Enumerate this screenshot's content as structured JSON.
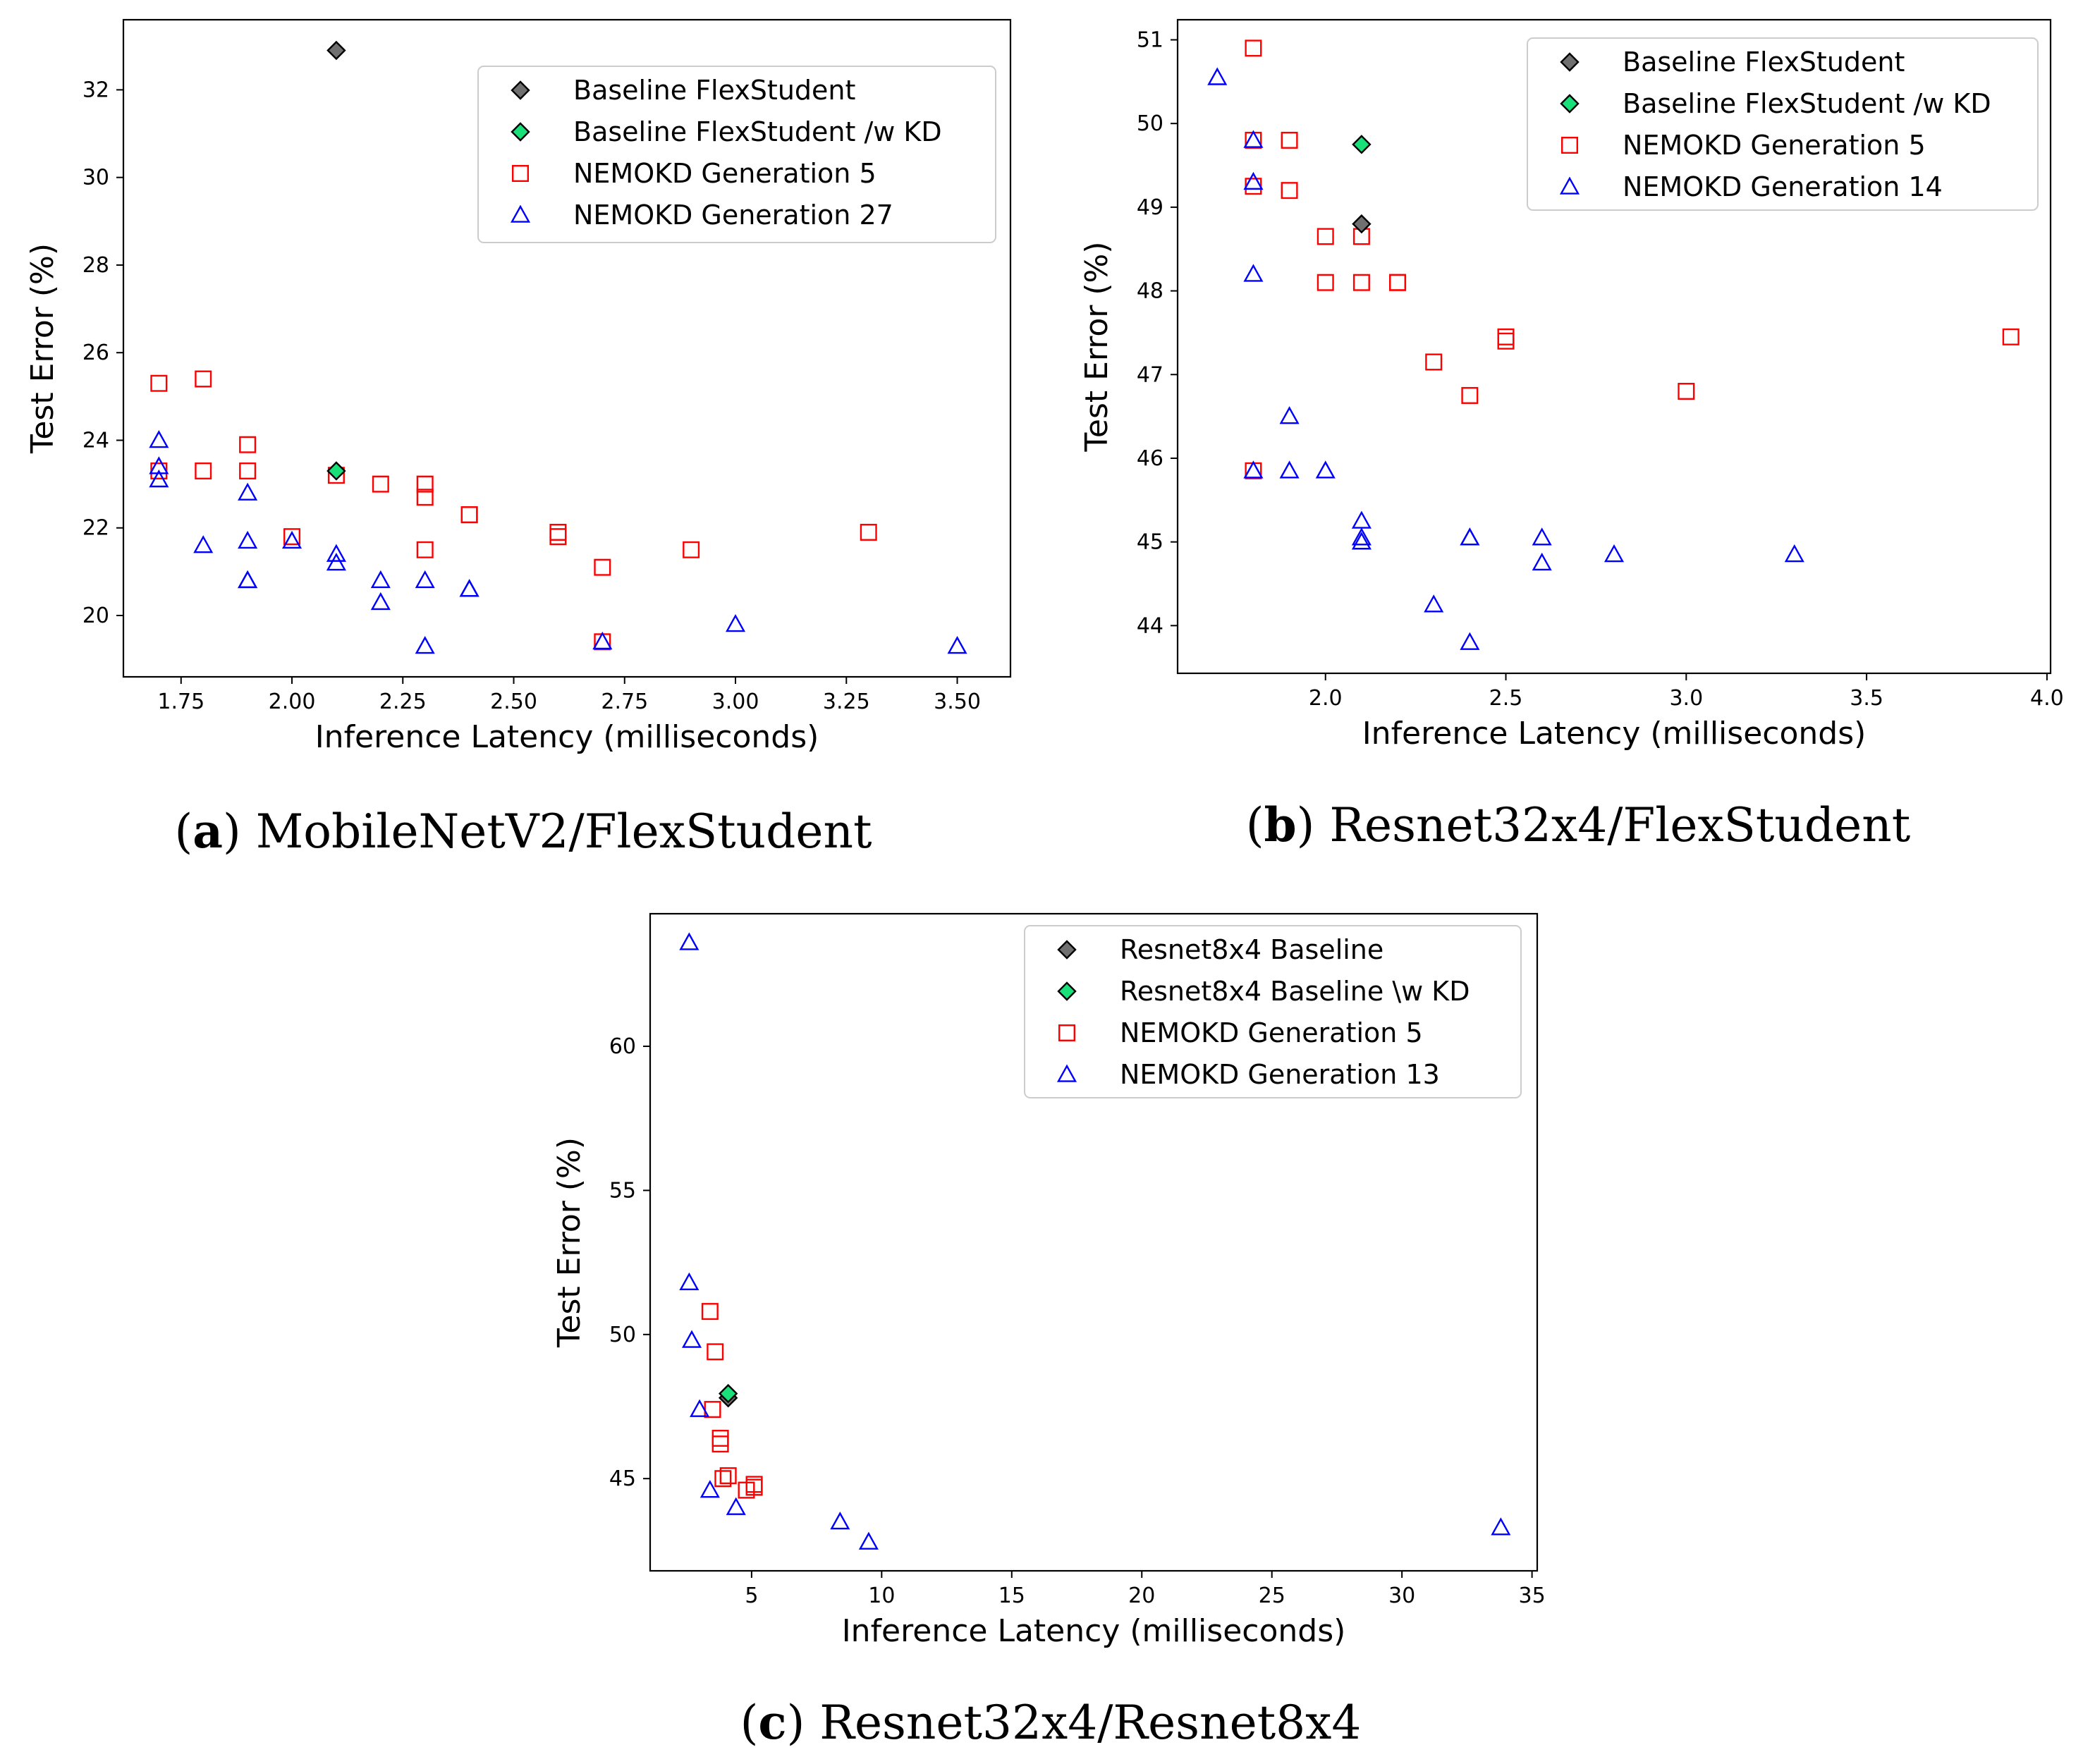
{
  "chart_data": [
    {
      "id": "a",
      "type": "scatter",
      "title": "",
      "xlabel": "Inference Latency (milliseconds)",
      "ylabel": "Test Error (%)",
      "xlim": [
        1.62,
        3.62
      ],
      "ylim": [
        18.6,
        33.6
      ],
      "xticks": [
        1.75,
        2.0,
        2.25,
        2.5,
        2.75,
        3.0,
        3.25,
        3.5
      ],
      "xtick_labels": [
        "1.75",
        "2.00",
        "2.25",
        "2.50",
        "2.75",
        "3.00",
        "3.25",
        "3.50"
      ],
      "yticks": [
        20,
        22,
        24,
        26,
        28,
        30,
        32
      ],
      "ytick_labels": [
        "20",
        "22",
        "24",
        "26",
        "28",
        "30",
        "32"
      ],
      "legend_position": "top-right",
      "caption_letter": "a",
      "caption_text": " MobileNetV2/FlexStudent",
      "series": [
        {
          "name": "Baseline FlexStudent",
          "marker": "diamond",
          "color": "#707070",
          "edge": "#000000",
          "x": [
            2.1
          ],
          "y": [
            32.9
          ]
        },
        {
          "name": "Baseline FlexStudent /w KD",
          "marker": "diamond",
          "color": "#1ae07a",
          "edge": "#000000",
          "x": [
            2.1
          ],
          "y": [
            23.3
          ]
        },
        {
          "name": "NEMOKD Generation 5",
          "marker": "square",
          "color": "#ff0000",
          "edge": "#ff0000",
          "x": [
            1.7,
            1.7,
            1.8,
            1.8,
            1.9,
            1.9,
            2.0,
            2.1,
            2.2,
            2.3,
            2.3,
            2.3,
            2.4,
            2.4,
            2.6,
            2.6,
            2.7,
            2.7,
            2.9,
            3.3
          ],
          "y": [
            25.3,
            23.3,
            25.4,
            23.3,
            23.9,
            23.3,
            21.8,
            23.2,
            23.0,
            23.0,
            22.7,
            21.5,
            22.3,
            22.3,
            21.9,
            21.8,
            21.1,
            19.4,
            21.5,
            21.9
          ]
        },
        {
          "name": "NEMOKD Generation 27",
          "marker": "triangle",
          "color": "#0000ff",
          "edge": "#0000ff",
          "x": [
            1.7,
            1.7,
            1.7,
            1.8,
            1.9,
            1.9,
            1.9,
            1.9,
            2.0,
            2.1,
            2.1,
            2.2,
            2.2,
            2.3,
            2.3,
            2.4,
            2.4,
            2.7,
            3.0,
            3.5
          ],
          "y": [
            24.0,
            23.4,
            23.1,
            21.6,
            22.8,
            21.7,
            20.8,
            20.8,
            21.7,
            21.4,
            21.2,
            20.8,
            20.3,
            20.8,
            19.3,
            20.6,
            20.6,
            19.4,
            19.8,
            19.3
          ]
        }
      ]
    },
    {
      "id": "b",
      "type": "scatter",
      "title": "",
      "xlabel": "Inference Latency (milliseconds)",
      "ylabel": "Test Error (%)",
      "xlim": [
        1.59,
        4.01
      ],
      "ylim": [
        43.43,
        51.24
      ],
      "xticks": [
        2.0,
        2.5,
        3.0,
        3.5,
        4.0
      ],
      "xtick_labels": [
        "2.0",
        "2.5",
        "3.0",
        "3.5",
        "4.0"
      ],
      "yticks": [
        44,
        45,
        46,
        47,
        48,
        49,
        50,
        51
      ],
      "ytick_labels": [
        "44",
        "45",
        "46",
        "47",
        "48",
        "49",
        "50",
        "51"
      ],
      "legend_position": "top-right",
      "caption_letter": "b",
      "caption_text": " Resnet32x4/FlexStudent",
      "series": [
        {
          "name": "Baseline FlexStudent",
          "marker": "diamond",
          "color": "#707070",
          "edge": "#000000",
          "x": [
            2.1
          ],
          "y": [
            48.8
          ]
        },
        {
          "name": "Baseline FlexStudent /w KD",
          "marker": "diamond",
          "color": "#1ae07a",
          "edge": "#000000",
          "x": [
            2.1
          ],
          "y": [
            49.75
          ]
        },
        {
          "name": "NEMOKD Generation 5",
          "marker": "square",
          "color": "#ff0000",
          "edge": "#ff0000",
          "x": [
            1.8,
            1.8,
            1.8,
            1.8,
            1.9,
            1.9,
            2.0,
            2.0,
            2.1,
            2.1,
            2.2,
            2.2,
            2.3,
            2.4,
            2.5,
            2.5,
            3.0,
            3.9
          ],
          "y": [
            50.9,
            49.8,
            49.25,
            45.85,
            49.8,
            49.2,
            48.65,
            48.1,
            48.65,
            48.1,
            48.1,
            48.1,
            47.15,
            46.75,
            47.45,
            47.4,
            46.8,
            47.45
          ]
        },
        {
          "name": "NEMOKD Generation 14",
          "marker": "triangle",
          "color": "#0000ff",
          "edge": "#0000ff",
          "x": [
            1.7,
            1.8,
            1.8,
            1.8,
            1.8,
            1.9,
            1.9,
            2.0,
            2.1,
            2.1,
            2.1,
            2.3,
            2.4,
            2.4,
            2.4,
            2.6,
            2.6,
            2.8,
            3.3
          ],
          "y": [
            50.55,
            49.8,
            49.3,
            48.2,
            45.85,
            46.5,
            45.85,
            45.85,
            45.25,
            45.05,
            45.0,
            44.25,
            45.05,
            45.05,
            43.8,
            45.05,
            44.75,
            44.85,
            44.85
          ]
        }
      ]
    },
    {
      "id": "c",
      "type": "scatter",
      "title": "",
      "xlabel": "Inference Latency (milliseconds)",
      "ylabel": "Test Error (%)",
      "xlim": [
        1.1,
        35.2
      ],
      "ylim": [
        41.8,
        64.6
      ],
      "xticks": [
        5,
        10,
        15,
        20,
        25,
        30,
        35
      ],
      "xtick_labels": [
        "5",
        "10",
        "15",
        "20",
        "25",
        "30",
        "35"
      ],
      "yticks": [
        45,
        50,
        55,
        60
      ],
      "ytick_labels": [
        "45",
        "50",
        "55",
        "60"
      ],
      "legend_position": "top-right",
      "caption_letter": "c",
      "caption_text": " Resnet32x4/Resnet8x4",
      "series": [
        {
          "name": "Resnet8x4 Baseline",
          "marker": "diamond",
          "color": "#707070",
          "edge": "#000000",
          "x": [
            4.1
          ],
          "y": [
            47.8
          ]
        },
        {
          "name": "Resnet8x4 Baseline \\w KD",
          "marker": "diamond",
          "color": "#1ae07a",
          "edge": "#000000",
          "x": [
            4.1
          ],
          "y": [
            47.95
          ]
        },
        {
          "name": "NEMOKD Generation 5",
          "marker": "square",
          "color": "#ff0000",
          "edge": "#ff0000",
          "x": [
            3.4,
            3.6,
            3.5,
            3.8,
            3.8,
            3.9,
            4.1,
            4.8,
            5.1,
            5.1
          ],
          "y": [
            50.8,
            49.4,
            47.4,
            46.4,
            46.2,
            45.0,
            45.1,
            44.6,
            44.8,
            44.7
          ]
        },
        {
          "name": "NEMOKD Generation 13",
          "marker": "triangle",
          "color": "#0000ff",
          "edge": "#0000ff",
          "x": [
            2.6,
            2.6,
            2.7,
            3.0,
            3.4,
            4.4,
            8.4,
            9.5,
            33.8
          ],
          "y": [
            63.6,
            51.8,
            49.8,
            47.4,
            44.6,
            44.0,
            43.5,
            42.8,
            43.3
          ]
        }
      ]
    }
  ]
}
